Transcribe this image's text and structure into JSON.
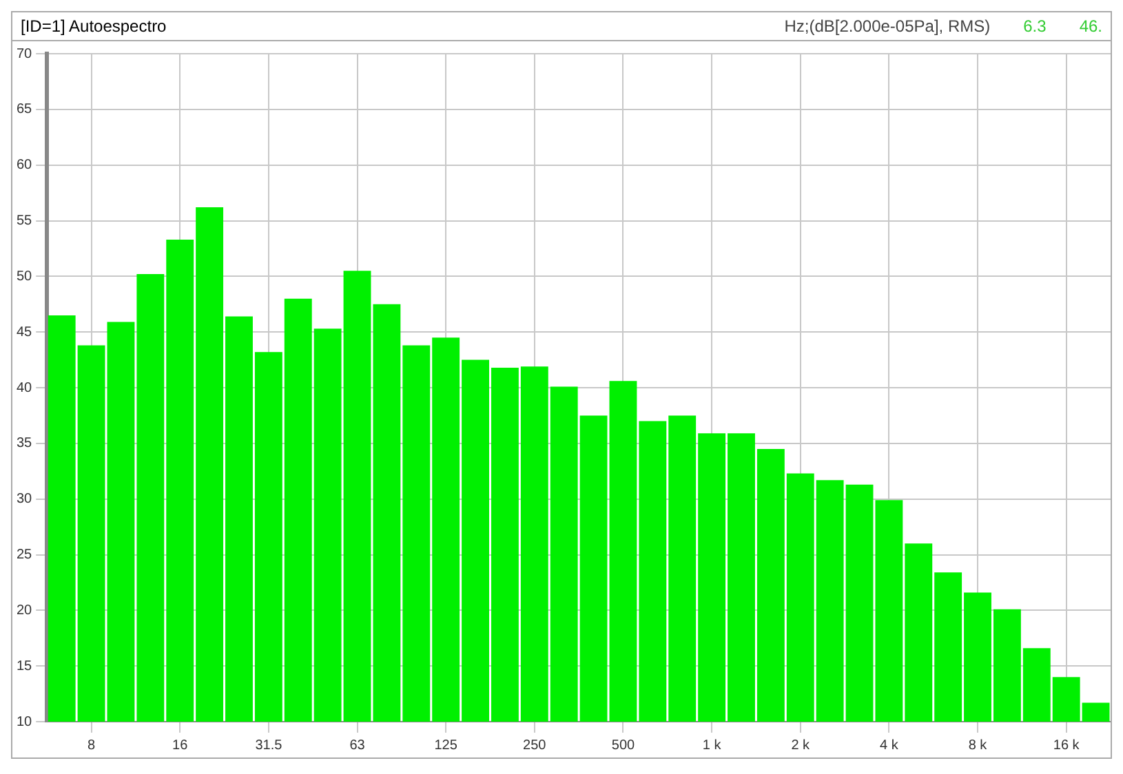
{
  "chart_data": {
    "type": "bar",
    "title": "[ID=1] Autoespectro",
    "subtitle": "Hz;(dB[2.000e-05Pa], RMS)",
    "annotations": [
      "6.3",
      "46."
    ],
    "categories": [
      null,
      "8",
      null,
      null,
      "16",
      null,
      null,
      "31.5",
      null,
      null,
      "63",
      null,
      null,
      "125",
      null,
      null,
      "250",
      null,
      null,
      "500",
      null,
      null,
      "1 k",
      null,
      null,
      "2 k",
      null,
      null,
      "4 k",
      null,
      null,
      "8 k",
      null,
      null,
      "16 k",
      null
    ],
    "values": [
      46.5,
      43.8,
      45.9,
      50.2,
      53.3,
      56.2,
      46.4,
      43.2,
      48.0,
      45.3,
      50.5,
      47.5,
      43.8,
      44.5,
      42.5,
      41.8,
      41.9,
      40.1,
      37.5,
      40.6,
      37.0,
      37.5,
      35.9,
      35.9,
      34.5,
      32.3,
      31.7,
      31.3,
      29.9,
      26.0,
      23.4,
      21.6,
      20.1,
      16.6,
      14.0,
      11.7
    ],
    "color": "#00f000",
    "ylim": [
      10,
      70
    ],
    "yticks": [
      10,
      15,
      20,
      25,
      30,
      35,
      40,
      45,
      50,
      55,
      60,
      65,
      70
    ],
    "grid": true
  }
}
